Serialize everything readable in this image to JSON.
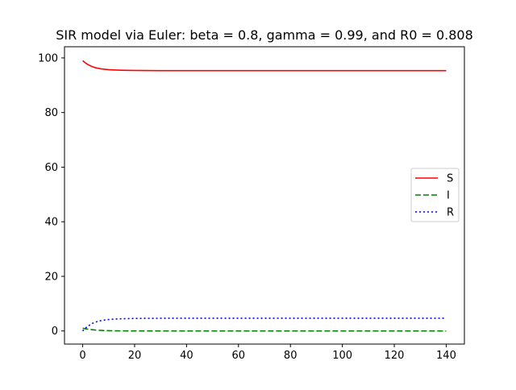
{
  "chart_data": {
    "type": "line",
    "title": "SIR model via Euler: beta = 0.8, gamma = 0.99, and R0 = 0.808",
    "xlabel": "",
    "ylabel": "",
    "xlim": [
      -7,
      147
    ],
    "ylim": [
      -4.8,
      104.1
    ],
    "xticks": [
      0,
      20,
      40,
      60,
      80,
      100,
      120,
      140
    ],
    "yticks": [
      0,
      20,
      40,
      60,
      80,
      100
    ],
    "grid": false,
    "legend_position": "center-right",
    "series": [
      {
        "name": "S",
        "color": "#ff0000",
        "style": "solid",
        "x": [
          0,
          1,
          2,
          3,
          4,
          5,
          6,
          7,
          8,
          10,
          12,
          15,
          20,
          30,
          40,
          60,
          80,
          100,
          120,
          140
        ],
        "y": [
          99.0,
          98.2,
          97.6,
          97.1,
          96.7,
          96.4,
          96.2,
          96.0,
          95.9,
          95.7,
          95.6,
          95.5,
          95.4,
          95.35,
          95.35,
          95.35,
          95.35,
          95.35,
          95.35,
          95.35
        ]
      },
      {
        "name": "I",
        "color": "#008000",
        "style": "dashed",
        "x": [
          0,
          1,
          2,
          3,
          4,
          5,
          6,
          8,
          10,
          12,
          15,
          20,
          30,
          40,
          60,
          80,
          100,
          120,
          140
        ],
        "y": [
          1.0,
          0.82,
          0.66,
          0.53,
          0.42,
          0.33,
          0.26,
          0.16,
          0.1,
          0.06,
          0.03,
          0.01,
          0.0,
          0.0,
          0.0,
          0.0,
          0.0,
          0.0,
          0.0
        ]
      },
      {
        "name": "R",
        "color": "#0000ff",
        "style": "dotted",
        "x": [
          0,
          1,
          2,
          3,
          4,
          5,
          6,
          7,
          8,
          10,
          12,
          15,
          20,
          30,
          40,
          60,
          80,
          100,
          120,
          140
        ],
        "y": [
          0.0,
          0.98,
          1.74,
          2.37,
          2.88,
          3.27,
          3.54,
          3.78,
          3.94,
          4.19,
          4.34,
          4.47,
          4.59,
          4.65,
          4.65,
          4.65,
          4.65,
          4.65,
          4.65,
          4.65
        ]
      }
    ]
  }
}
